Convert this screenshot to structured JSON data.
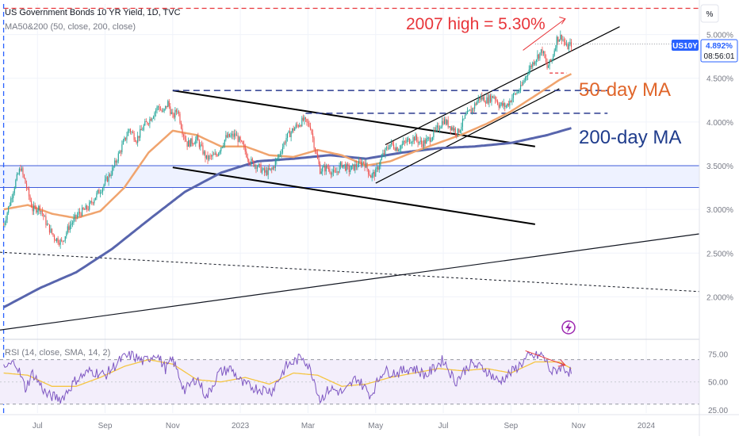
{
  "header": {
    "title": "US Government Bonds 10 YR Yield, 1D, TVC",
    "indicator": "MA50&200 (50, close, 200, close)",
    "rsi_label": "RSI (14, close, SMA, 14, 2)",
    "scale_label": "%"
  },
  "price_badge": {
    "symbol": "US10Y",
    "value": "4.892%",
    "countdown": "08:56:01"
  },
  "colors": {
    "up": "#26a69a",
    "down": "#ef5350",
    "ma50": "#f0a46e",
    "ma200": "#5865ad",
    "annotation_red": "#e8353a",
    "annotation_orange": "#e0662b",
    "annotation_blue": "#1f3c8c",
    "dashed_blue": "#2a3a8f",
    "rsi": "#7e57c2",
    "rsi_sma": "#f5c542"
  },
  "chart_data": {
    "type": "candlestick",
    "y_axis": {
      "unit": "%",
      "ylim": [
        1.55,
        5.35
      ],
      "ticks": [
        "5.000%",
        "4.500%",
        "4.000%",
        "3.500%",
        "3.000%",
        "2.500%",
        "2.000%"
      ],
      "tick_values": [
        5.0,
        4.5,
        4.0,
        3.5,
        3.0,
        2.5,
        2.0
      ]
    },
    "x_axis": {
      "ticks": [
        "Jul",
        "Sep",
        "Nov",
        "2023",
        "Mar",
        "May",
        "Jul",
        "Sep",
        "Nov",
        "2024"
      ],
      "tick_index": [
        28,
        84,
        140,
        196,
        252,
        308,
        364,
        420,
        476,
        532
      ],
      "range_index": [
        -3,
        576
      ]
    },
    "price_anchors": [
      [
        0,
        2.82
      ],
      [
        4,
        3.02
      ],
      [
        10,
        3.32
      ],
      [
        14,
        3.48
      ],
      [
        18,
        3.3
      ],
      [
        24,
        3.0
      ],
      [
        30,
        3.02
      ],
      [
        36,
        2.82
      ],
      [
        42,
        2.68
      ],
      [
        48,
        2.62
      ],
      [
        54,
        2.8
      ],
      [
        62,
        2.95
      ],
      [
        70,
        3.02
      ],
      [
        76,
        3.15
      ],
      [
        82,
        3.26
      ],
      [
        90,
        3.45
      ],
      [
        98,
        3.72
      ],
      [
        104,
        3.92
      ],
      [
        110,
        3.8
      ],
      [
        116,
        3.95
      ],
      [
        122,
        4.05
      ],
      [
        128,
        4.18
      ],
      [
        132,
        4.1
      ],
      [
        136,
        4.22
      ],
      [
        140,
        4.05
      ],
      [
        144,
        4.15
      ],
      [
        148,
        3.9
      ],
      [
        152,
        3.75
      ],
      [
        160,
        3.8
      ],
      [
        168,
        3.58
      ],
      [
        176,
        3.62
      ],
      [
        184,
        3.82
      ],
      [
        192,
        3.85
      ],
      [
        198,
        3.72
      ],
      [
        204,
        3.55
      ],
      [
        210,
        3.5
      ],
      [
        216,
        3.42
      ],
      [
        222,
        3.45
      ],
      [
        228,
        3.62
      ],
      [
        234,
        3.82
      ],
      [
        240,
        3.92
      ],
      [
        248,
        4.02
      ],
      [
        254,
        3.95
      ],
      [
        258,
        3.68
      ],
      [
        262,
        3.45
      ],
      [
        268,
        3.48
      ],
      [
        274,
        3.4
      ],
      [
        280,
        3.52
      ],
      [
        286,
        3.45
      ],
      [
        292,
        3.5
      ],
      [
        298,
        3.55
      ],
      [
        304,
        3.38
      ],
      [
        308,
        3.42
      ],
      [
        314,
        3.62
      ],
      [
        320,
        3.75
      ],
      [
        326,
        3.7
      ],
      [
        334,
        3.78
      ],
      [
        340,
        3.82
      ],
      [
        346,
        3.75
      ],
      [
        352,
        3.8
      ],
      [
        358,
        3.9
      ],
      [
        364,
        4.02
      ],
      [
        370,
        3.95
      ],
      [
        376,
        3.88
      ],
      [
        382,
        4.05
      ],
      [
        388,
        4.15
      ],
      [
        394,
        4.28
      ],
      [
        400,
        4.25
      ],
      [
        406,
        4.3
      ],
      [
        410,
        4.2
      ],
      [
        416,
        4.18
      ],
      [
        422,
        4.3
      ],
      [
        428,
        4.38
      ],
      [
        434,
        4.58
      ],
      [
        440,
        4.72
      ],
      [
        446,
        4.82
      ],
      [
        450,
        4.62
      ],
      [
        454,
        4.72
      ],
      [
        458,
        4.95
      ],
      [
        462,
        4.98
      ],
      [
        466,
        4.85
      ],
      [
        470,
        4.89
      ]
    ],
    "ma50_anchors": [
      [
        0,
        3.0
      ],
      [
        20,
        3.05
      ],
      [
        40,
        2.95
      ],
      [
        60,
        2.9
      ],
      [
        80,
        2.98
      ],
      [
        100,
        3.25
      ],
      [
        120,
        3.65
      ],
      [
        140,
        3.9
      ],
      [
        160,
        3.85
      ],
      [
        180,
        3.72
      ],
      [
        200,
        3.72
      ],
      [
        220,
        3.62
      ],
      [
        240,
        3.6
      ],
      [
        260,
        3.68
      ],
      [
        280,
        3.62
      ],
      [
        300,
        3.5
      ],
      [
        320,
        3.55
      ],
      [
        340,
        3.66
      ],
      [
        360,
        3.76
      ],
      [
        380,
        3.86
      ],
      [
        400,
        3.98
      ],
      [
        420,
        4.12
      ],
      [
        440,
        4.3
      ],
      [
        460,
        4.48
      ],
      [
        470,
        4.55
      ]
    ],
    "ma200_anchors": [
      [
        0,
        1.88
      ],
      [
        30,
        2.1
      ],
      [
        60,
        2.28
      ],
      [
        90,
        2.55
      ],
      [
        120,
        2.88
      ],
      [
        150,
        3.2
      ],
      [
        180,
        3.42
      ],
      [
        210,
        3.55
      ],
      [
        240,
        3.58
      ],
      [
        270,
        3.62
      ],
      [
        300,
        3.58
      ],
      [
        330,
        3.65
      ],
      [
        360,
        3.7
      ],
      [
        390,
        3.72
      ],
      [
        420,
        3.76
      ],
      [
        450,
        3.85
      ],
      [
        470,
        3.93
      ]
    ],
    "rsi": {
      "ylim": [
        22,
        84
      ],
      "ticks": [
        "75.00",
        "50.00",
        "25.00"
      ],
      "tick_values": [
        75,
        50,
        25
      ],
      "band_upper": 70,
      "band_lower": 30,
      "rsi_anchors": [
        [
          0,
          62
        ],
        [
          10,
          68
        ],
        [
          18,
          44
        ],
        [
          24,
          58
        ],
        [
          36,
          38
        ],
        [
          48,
          35
        ],
        [
          60,
          52
        ],
        [
          72,
          60
        ],
        [
          84,
          56
        ],
        [
          98,
          71
        ],
        [
          106,
          74
        ],
        [
          116,
          68
        ],
        [
          126,
          76
        ],
        [
          134,
          62
        ],
        [
          140,
          70
        ],
        [
          150,
          42
        ],
        [
          160,
          54
        ],
        [
          168,
          36
        ],
        [
          178,
          58
        ],
        [
          188,
          62
        ],
        [
          198,
          48
        ],
        [
          210,
          44
        ],
        [
          222,
          42
        ],
        [
          234,
          64
        ],
        [
          248,
          73
        ],
        [
          256,
          56
        ],
        [
          262,
          34
        ],
        [
          270,
          44
        ],
        [
          282,
          40
        ],
        [
          292,
          54
        ],
        [
          304,
          38
        ],
        [
          314,
          60
        ],
        [
          326,
          58
        ],
        [
          338,
          63
        ],
        [
          350,
          56
        ],
        [
          364,
          70
        ],
        [
          374,
          50
        ],
        [
          386,
          66
        ],
        [
          398,
          62
        ],
        [
          410,
          50
        ],
        [
          422,
          60
        ],
        [
          434,
          72
        ],
        [
          446,
          74
        ],
        [
          454,
          58
        ],
        [
          462,
          64
        ],
        [
          470,
          58
        ]
      ],
      "sma_anchors": [
        [
          0,
          58
        ],
        [
          20,
          56
        ],
        [
          40,
          46
        ],
        [
          60,
          46
        ],
        [
          80,
          54
        ],
        [
          100,
          64
        ],
        [
          120,
          70
        ],
        [
          140,
          66
        ],
        [
          160,
          52
        ],
        [
          180,
          50
        ],
        [
          200,
          54
        ],
        [
          220,
          48
        ],
        [
          240,
          58
        ],
        [
          260,
          56
        ],
        [
          280,
          46
        ],
        [
          300,
          48
        ],
        [
          320,
          54
        ],
        [
          340,
          58
        ],
        [
          360,
          62
        ],
        [
          380,
          60
        ],
        [
          400,
          62
        ],
        [
          420,
          58
        ],
        [
          440,
          68
        ],
        [
          460,
          68
        ],
        [
          470,
          62
        ]
      ]
    }
  },
  "annotations": {
    "high_label": "2007 high  = 5.30%",
    "ma50_label": "50-day MA",
    "ma200_label": "200-day MA"
  }
}
